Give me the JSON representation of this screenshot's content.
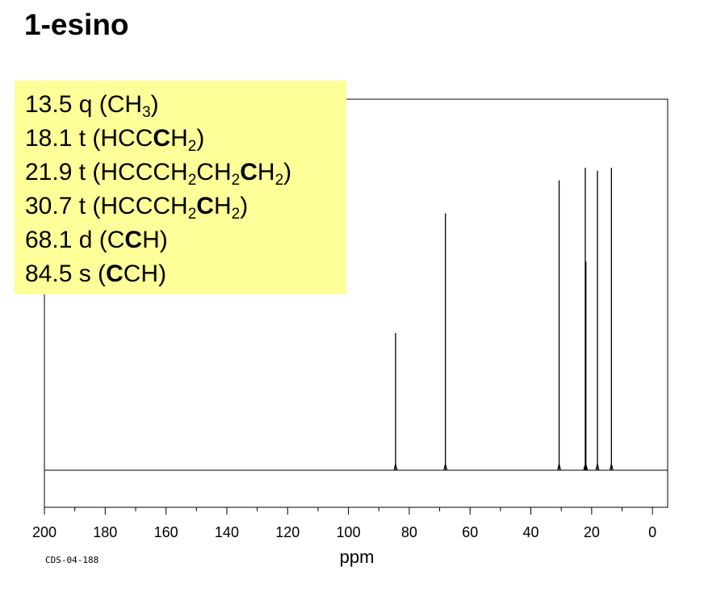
{
  "title": "1-esino",
  "annotations": [
    {
      "id": "a0",
      "parts": [
        {
          "t": "13.5 q (CH"
        },
        {
          "t": "3",
          "sub": true
        },
        {
          "t": ")"
        }
      ]
    },
    {
      "id": "a1",
      "parts": [
        {
          "t": "18.1 t (HCC"
        },
        {
          "t": "C",
          "bold": true
        },
        {
          "t": "H"
        },
        {
          "t": "2",
          "sub": true
        },
        {
          "t": ")"
        }
      ]
    },
    {
      "id": "a2",
      "parts": [
        {
          "t": "21.9 t (HCCCH"
        },
        {
          "t": "2",
          "sub": true
        },
        {
          "t": "CH"
        },
        {
          "t": "2",
          "sub": true
        },
        {
          "t": "C",
          "bold": true
        },
        {
          "t": "H"
        },
        {
          "t": "2",
          "sub": true
        },
        {
          "t": ")"
        }
      ]
    },
    {
      "id": "a3",
      "parts": [
        {
          "t": "30.7 t (HCCCH"
        },
        {
          "t": "2",
          "sub": true
        },
        {
          "t": "C",
          "bold": true
        },
        {
          "t": "H"
        },
        {
          "t": "2",
          "sub": true
        },
        {
          "t": ")"
        }
      ]
    },
    {
      "id": "a4",
      "parts": [
        {
          "t": "68.1 d (C"
        },
        {
          "t": "C",
          "bold": true
        },
        {
          "t": "H)"
        }
      ]
    },
    {
      "id": "a5",
      "parts": [
        {
          "t": "84.5 s ("
        },
        {
          "t": "C",
          "bold": true
        },
        {
          "t": "CH)"
        }
      ]
    }
  ],
  "spectrum_code": "CDS-04-188",
  "chart_data": {
    "type": "line",
    "title": "1-esino",
    "xlabel": "ppm",
    "ylabel": "",
    "x_reversed": true,
    "xlim": [
      200,
      -5
    ],
    "ylim": [
      0,
      1
    ],
    "grid": false,
    "x_ticks": [
      200,
      180,
      160,
      140,
      120,
      100,
      80,
      60,
      40,
      20,
      0
    ],
    "x_minor_tick_step": 10,
    "peaks": [
      {
        "ppm": 84.5,
        "intensity": 0.405
      },
      {
        "ppm": 68.1,
        "intensity": 0.758
      },
      {
        "ppm": 30.7,
        "intensity": 0.856
      },
      {
        "ppm": 22.1,
        "intensity": 0.893
      },
      {
        "ppm": 21.9,
        "intensity": 0.616
      },
      {
        "ppm": 18.1,
        "intensity": 0.884
      },
      {
        "ppm": 13.5,
        "intensity": 0.893
      }
    ],
    "colors": {
      "line": "#000000",
      "annotation_bg": "#ffff99"
    }
  }
}
